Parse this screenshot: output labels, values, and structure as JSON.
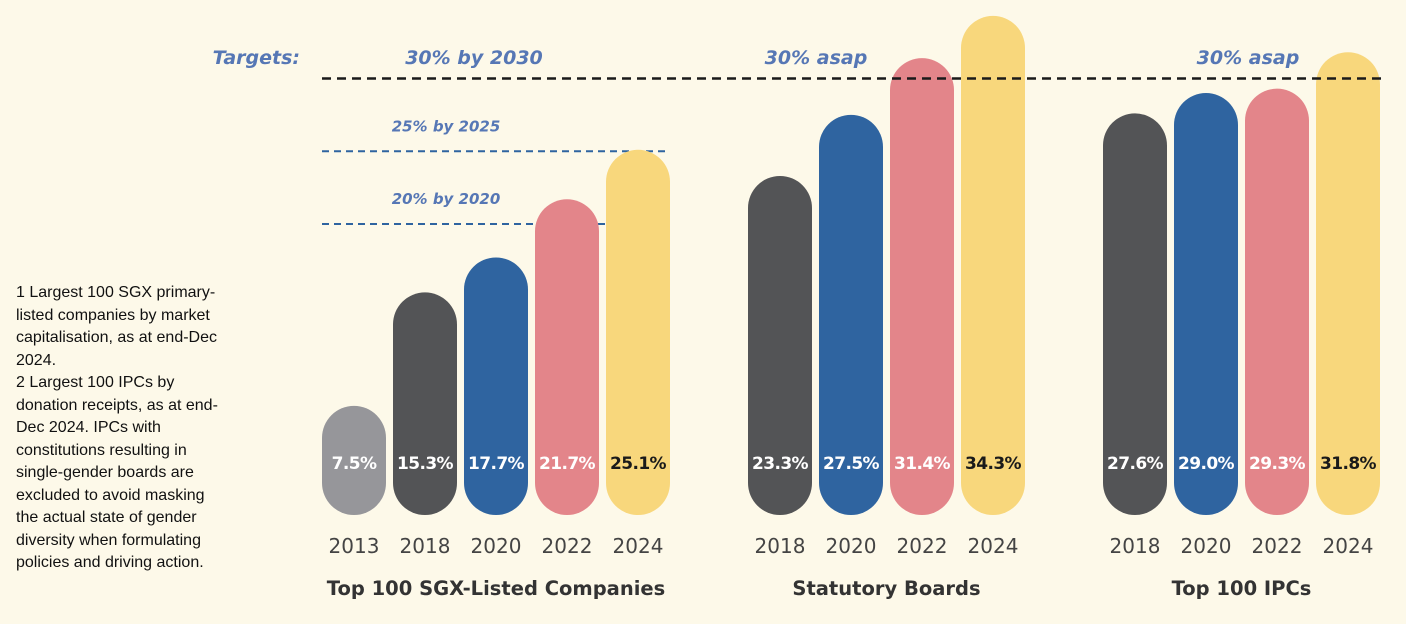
{
  "targets_label": "Targets:",
  "footnotes": [
    "1 Largest 100 SGX primary-listed companies by market capitalisation, as at end-Dec 2024.",
    "2 Largest 100 IPCs by donation receipts, as at end-Dec 2024. IPCs with constitutions resulting in single-gender boards are excluded to avoid masking the actual state of gender diversity when formulating policies and driving action."
  ],
  "colors": {
    "2013": "#96969a",
    "2018": "#535456",
    "2020": "#2f64a0",
    "2022": "#e3858a",
    "2024": "#f8d77c",
    "target_black": "#1a1a1a",
    "target_blue": "#2f64a0",
    "target_text": "#5677b5"
  },
  "chart_data": [
    {
      "type": "bar",
      "title": "Top 100 SGX-Listed Companies",
      "categories": [
        "2013",
        "2018",
        "2020",
        "2022",
        "2024"
      ],
      "values": [
        7.5,
        15.3,
        17.7,
        21.7,
        25.1
      ],
      "value_labels": [
        "7.5%",
        "15.3%",
        "17.7%",
        "21.7%",
        "25.1%"
      ],
      "ylim": [
        0,
        35
      ],
      "targets": [
        {
          "label": "30% by 2030",
          "value": 30
        },
        {
          "label": "25% by 2025",
          "value": 25
        },
        {
          "label": "20% by 2020",
          "value": 20
        }
      ]
    },
    {
      "type": "bar",
      "title": "Statutory Boards",
      "categories": [
        "2018",
        "2020",
        "2022",
        "2024"
      ],
      "values": [
        23.3,
        27.5,
        31.4,
        34.3
      ],
      "value_labels": [
        "23.3%",
        "27.5%",
        "31.4%",
        "34.3%"
      ],
      "ylim": [
        0,
        35
      ],
      "targets": [
        {
          "label": "30% asap",
          "value": 30
        }
      ]
    },
    {
      "type": "bar",
      "title": "Top 100 IPCs",
      "categories": [
        "2018",
        "2020",
        "2022",
        "2024"
      ],
      "values": [
        27.6,
        29.0,
        29.3,
        31.8
      ],
      "value_labels": [
        "27.6%",
        "29.0%",
        "29.3%",
        "31.8%"
      ],
      "ylim": [
        0,
        35
      ],
      "targets": [
        {
          "label": "30% asap",
          "value": 30
        }
      ]
    }
  ]
}
